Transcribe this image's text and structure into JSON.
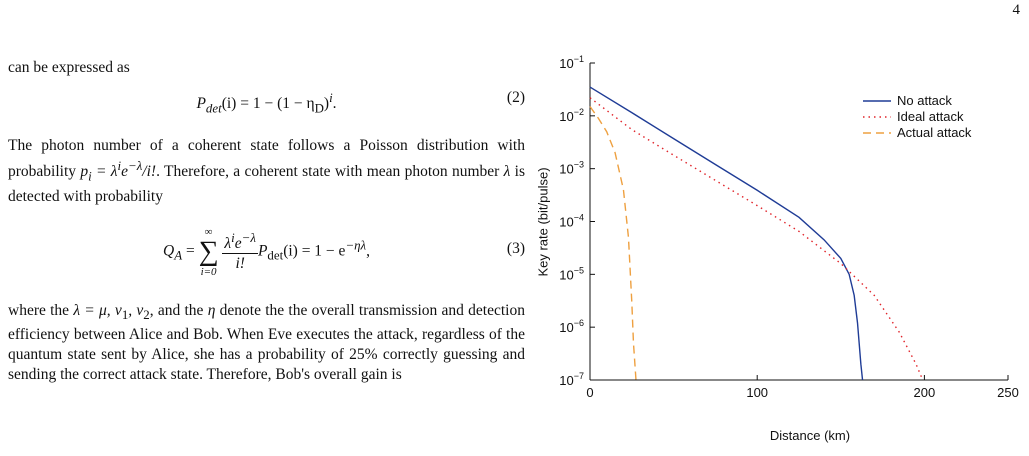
{
  "page_number": "4",
  "text": {
    "intro": "can be expressed as",
    "equation_2": {
      "parts": [
        "P",
        "det",
        "(i) = 1 − (1 − η",
        "D",
        ")",
        "i",
        "."
      ],
      "number": "(2)"
    },
    "paragraph_1": [
      "The photon number of a coherent state follows a Poisson distribution with probability ",
      "p",
      "i",
      " = λ",
      "i",
      "e",
      "−λ",
      "/i!",
      ". Therefore, a coherent state with mean photon number ",
      "λ",
      " is detected with probability"
    ],
    "equation_3": {
      "parts": [
        "Q",
        "A",
        "=",
        "∞",
        "∑",
        "i=0",
        "λ",
        "i",
        "e",
        "−λ",
        "i!",
        "P",
        "det",
        "(i) = 1 − e",
        "−ηλ",
        ","
      ],
      "number": "(3)"
    },
    "paragraph_2": [
      "where the ",
      "λ = μ, ν",
      "1",
      ", ν",
      "2",
      ", and the ",
      "η",
      " denote the the overall transmission and detection efficiency between Alice and Bob. When Eve executes the attack, regardless of the quantum state sent by Alice, she has a probability of 25% correctly guessing and sending the correct attack state. Therefore, Bob's overall gain is"
    ]
  },
  "chart_data": {
    "type": "line",
    "x_label": "Distance (km)",
    "y_label": "Key rate (bit/pulse)",
    "y_scale": "log",
    "xlim": [
      0,
      250
    ],
    "xticks": [
      0,
      100,
      200,
      250
    ],
    "ylim": [
      1e-07,
      0.1
    ],
    "yticks": [
      {
        "value": 1e-07,
        "label": "10−7"
      },
      {
        "value": 1e-06,
        "label": "10−6"
      },
      {
        "value": 1e-05,
        "label": "10−5"
      },
      {
        "value": 0.0001,
        "label": "10−4"
      },
      {
        "value": 0.001,
        "label": "10−3"
      },
      {
        "value": 0.01,
        "label": "10−2"
      },
      {
        "value": 0.1,
        "label": "10−1"
      }
    ],
    "legend": "upper right",
    "series": [
      {
        "name": "No attack",
        "color": "#1f3c96",
        "style": "solid",
        "x": [
          0,
          25,
          50,
          75,
          100,
          125,
          140,
          150,
          155,
          158,
          160,
          162,
          163
        ],
        "values": [
          0.035,
          0.0115,
          0.0037,
          0.0012,
          0.00039,
          0.00012,
          4.5e-05,
          2e-05,
          1e-05,
          4e-06,
          1.2e-06,
          2e-07,
          1e-07
        ]
      },
      {
        "name": "Ideal attack",
        "color": "#e0242a",
        "style": "dotted",
        "x": [
          0,
          25,
          50,
          75,
          100,
          125,
          150,
          170,
          185,
          195,
          199
        ],
        "values": [
          0.022,
          0.0055,
          0.0018,
          0.0006,
          0.0002,
          6.5e-05,
          1.6e-05,
          4e-06,
          8e-07,
          2e-07,
          1e-07
        ]
      },
      {
        "name": "Actual attack",
        "color": "#eea040",
        "style": "dashed",
        "x": [
          0,
          5,
          10,
          15,
          20,
          23,
          25,
          26,
          27.5
        ],
        "values": [
          0.015,
          0.009,
          0.005,
          0.002,
          0.0004,
          5e-05,
          3e-06,
          5e-07,
          1e-07
        ]
      }
    ]
  }
}
